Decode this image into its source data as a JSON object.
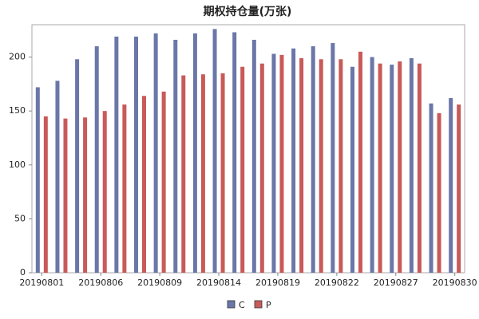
{
  "chart_data": {
    "type": "bar",
    "title": "期权持仓量(万张)",
    "categories": [
      "20190801",
      null,
      null,
      "20190806",
      null,
      null,
      "20190809",
      null,
      null,
      "20190814",
      null,
      null,
      "20190819",
      null,
      null,
      "20190822",
      null,
      null,
      "20190827",
      null,
      null,
      "20190830"
    ],
    "series": [
      {
        "name": "C",
        "color": "#6b77a8",
        "values": [
          172,
          178,
          198,
          210,
          219,
          219,
          222,
          216,
          222,
          226,
          223,
          216,
          203,
          208,
          210,
          213,
          191,
          200,
          193,
          199,
          157,
          162
        ]
      },
      {
        "name": "P",
        "color": "#c95a5a",
        "values": [
          145,
          143,
          144,
          150,
          156,
          164,
          168,
          183,
          184,
          185,
          191,
          194,
          202,
          199,
          198,
          198,
          205,
          194,
          196,
          194,
          148,
          156
        ]
      }
    ],
    "ylim": [
      0,
      230
    ],
    "yticks": [
      0,
      50,
      100,
      150,
      200
    ],
    "grid": false,
    "legend": "bottom"
  }
}
